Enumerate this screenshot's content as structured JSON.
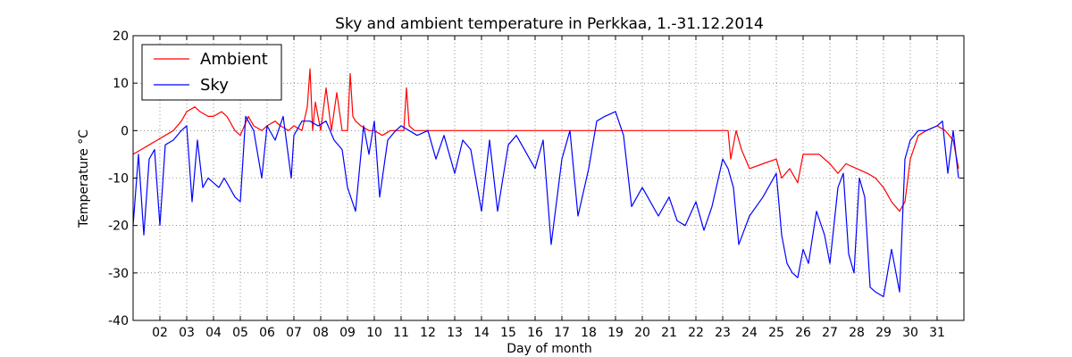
{
  "chart_data": {
    "type": "line",
    "title": "Sky and ambient temperature in Perkkaa, 1.-31.12.2014",
    "xlabel": "Day of month",
    "ylabel": "Temperature °C",
    "xlim": [
      1,
      32
    ],
    "ylim": [
      -40,
      20
    ],
    "yticks": [
      20,
      10,
      0,
      -10,
      -20,
      -30,
      -40
    ],
    "xtick_labels": [
      "02",
      "03",
      "04",
      "05",
      "06",
      "07",
      "08",
      "09",
      "10",
      "11",
      "12",
      "13",
      "14",
      "15",
      "16",
      "17",
      "18",
      "19",
      "20",
      "21",
      "22",
      "23",
      "24",
      "25",
      "26",
      "27",
      "28",
      "29",
      "30",
      "31"
    ],
    "grid": true,
    "legend_position": "top-left",
    "series": [
      {
        "name": "Ambient",
        "color": "#ff0000",
        "x": [
          1.0,
          1.3,
          1.6,
          1.9,
          2.2,
          2.5,
          2.8,
          3.0,
          3.3,
          3.5,
          3.8,
          4.0,
          4.3,
          4.5,
          4.8,
          5.0,
          5.3,
          5.5,
          5.8,
          6.0,
          6.3,
          6.5,
          6.8,
          7.0,
          7.3,
          7.5,
          7.6,
          7.7,
          7.8,
          8.0,
          8.2,
          8.4,
          8.6,
          8.8,
          9.0,
          9.1,
          9.2,
          9.3,
          9.5,
          9.8,
          10.0,
          10.3,
          10.6,
          10.9,
          11.1,
          11.2,
          11.3,
          11.5,
          11.8,
          12.0,
          12.5,
          13.0,
          13.5,
          14.0,
          14.5,
          15.0,
          15.5,
          16.0,
          16.5,
          17.0,
          17.5,
          18.0,
          18.5,
          19.0,
          19.5,
          20.0,
          20.5,
          21.0,
          21.5,
          22.0,
          22.5,
          23.0,
          23.2,
          23.3,
          23.5,
          23.7,
          24.0,
          24.5,
          25.0,
          25.2,
          25.5,
          25.8,
          26.0,
          26.3,
          26.6,
          27.0,
          27.3,
          27.6,
          28.0,
          28.4,
          28.7,
          29.0,
          29.3,
          29.6,
          29.8,
          30.0,
          30.3,
          30.6,
          31.0,
          31.3,
          31.6,
          31.8
        ],
        "y": [
          -5,
          -4,
          -3,
          -2,
          -1,
          0,
          2,
          4,
          5,
          4,
          3,
          3,
          4,
          3,
          0,
          -1,
          3,
          1,
          0,
          1,
          2,
          1,
          0,
          1,
          0,
          5,
          13,
          0,
          6,
          0,
          9,
          0,
          8,
          0,
          0,
          12,
          3,
          2,
          1,
          0,
          0,
          -1,
          0,
          0,
          0,
          9,
          1,
          0,
          0,
          0,
          0,
          0,
          0,
          0,
          0,
          0,
          0,
          0,
          0,
          0,
          0,
          0,
          0,
          0,
          0,
          0,
          0,
          0,
          0,
          0,
          0,
          0,
          0,
          -6,
          0,
          -4,
          -8,
          -7,
          -6,
          -10,
          -8,
          -11,
          -5,
          -5,
          -5,
          -7,
          -9,
          -7,
          -8,
          -9,
          -10,
          -12,
          -15,
          -17,
          -15,
          -6,
          -1,
          0,
          1,
          0,
          -2,
          -8
        ]
      },
      {
        "name": "Sky",
        "color": "#0000ff",
        "x": [
          1.0,
          1.2,
          1.4,
          1.6,
          1.8,
          2.0,
          2.2,
          2.5,
          2.8,
          3.0,
          3.2,
          3.4,
          3.6,
          3.8,
          4.0,
          4.2,
          4.4,
          4.6,
          4.8,
          5.0,
          5.2,
          5.5,
          5.8,
          6.0,
          6.3,
          6.6,
          6.9,
          7.0,
          7.3,
          7.6,
          7.9,
          8.2,
          8.5,
          8.8,
          9.0,
          9.3,
          9.6,
          9.8,
          10.0,
          10.2,
          10.5,
          10.8,
          11.0,
          11.3,
          11.6,
          12.0,
          12.3,
          12.6,
          13.0,
          13.3,
          13.6,
          14.0,
          14.3,
          14.6,
          15.0,
          15.3,
          15.6,
          16.0,
          16.3,
          16.6,
          17.0,
          17.3,
          17.6,
          18.0,
          18.3,
          18.6,
          19.0,
          19.3,
          19.6,
          20.0,
          20.3,
          20.6,
          21.0,
          21.3,
          21.6,
          22.0,
          22.3,
          22.6,
          23.0,
          23.2,
          23.4,
          23.6,
          24.0,
          24.5,
          25.0,
          25.2,
          25.4,
          25.6,
          25.8,
          26.0,
          26.2,
          26.5,
          26.8,
          27.0,
          27.3,
          27.5,
          27.7,
          27.9,
          28.1,
          28.3,
          28.5,
          28.7,
          29.0,
          29.3,
          29.6,
          29.8,
          30.0,
          30.3,
          30.6,
          31.0,
          31.2,
          31.4,
          31.6,
          31.8
        ],
        "y": [
          -20,
          -5,
          -22,
          -6,
          -4,
          -20,
          -3,
          -2,
          0,
          1,
          -15,
          -2,
          -12,
          -10,
          -11,
          -12,
          -10,
          -12,
          -14,
          -15,
          3,
          0,
          -10,
          1,
          -2,
          3,
          -10,
          -1,
          2,
          2,
          1,
          2,
          -2,
          -4,
          -12,
          -17,
          1,
          -5,
          2,
          -14,
          -2,
          0,
          1,
          0,
          -1,
          0,
          -6,
          -1,
          -9,
          -2,
          -4,
          -17,
          -2,
          -17,
          -3,
          -1,
          -4,
          -8,
          -2,
          -24,
          -6,
          0,
          -18,
          -8,
          2,
          3,
          4,
          -1,
          -16,
          -12,
          -15,
          -18,
          -14,
          -19,
          -20,
          -15,
          -21,
          -16,
          -6,
          -8,
          -12,
          -24,
          -18,
          -14,
          -9,
          -22,
          -28,
          -30,
          -31,
          -25,
          -28,
          -17,
          -22,
          -28,
          -12,
          -9,
          -26,
          -30,
          -10,
          -14,
          -33,
          -34,
          -35,
          -25,
          -34,
          -6,
          -2,
          0,
          0,
          1,
          2,
          -9,
          0,
          -10
        ]
      }
    ]
  }
}
